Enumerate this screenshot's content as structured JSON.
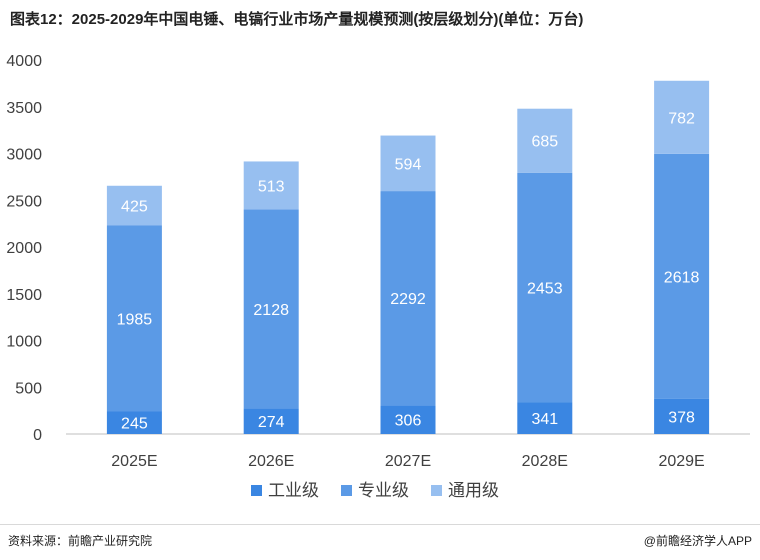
{
  "title": "图表12：2025-2029年中国电锤、电镐行业市场产量规模预测(按层级划分)(单位：万台)",
  "source": "资料来源：前瞻产业研究院",
  "brand": "@前瞻经济学人APP",
  "chart_data": {
    "type": "bar",
    "stacked": true,
    "title": "图表12：2025-2029年中国电锤、电镐行业市场产量规模预测(按层级划分)(单位：万台)",
    "categories": [
      "2025E",
      "2026E",
      "2027E",
      "2028E",
      "2029E"
    ],
    "series": [
      {
        "name": "工业级",
        "values": [
          245,
          274,
          306,
          341,
          378
        ],
        "color": "#3a86e2"
      },
      {
        "name": "专业级",
        "values": [
          1985,
          2128,
          2292,
          2453,
          2618
        ],
        "color": "#5b9ae6"
      },
      {
        "name": "通用级",
        "values": [
          425,
          513,
          594,
          685,
          782
        ],
        "color": "#97bff0"
      }
    ],
    "ylim": [
      0,
      4000
    ],
    "yticks": [
      0,
      500,
      1000,
      1500,
      2000,
      2500,
      3000,
      3500,
      4000
    ],
    "legend_position": "bottom",
    "grid": false
  }
}
